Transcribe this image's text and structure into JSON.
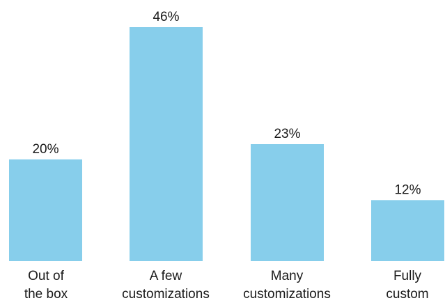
{
  "chart_data": {
    "type": "bar",
    "categories": [
      [
        "Out of",
        "the box"
      ],
      [
        "A few",
        "customizations"
      ],
      [
        "Many",
        "customizations"
      ],
      [
        "Fully",
        "custom"
      ]
    ],
    "values": [
      20,
      46,
      23,
      12
    ],
    "value_labels": [
      "20%",
      "46%",
      "23%",
      "12%"
    ],
    "title": "",
    "xlabel": "",
    "ylabel": "",
    "ylim": [
      0,
      46
    ],
    "grid": false,
    "legend": "none",
    "bar_color": "#87CEEB"
  }
}
